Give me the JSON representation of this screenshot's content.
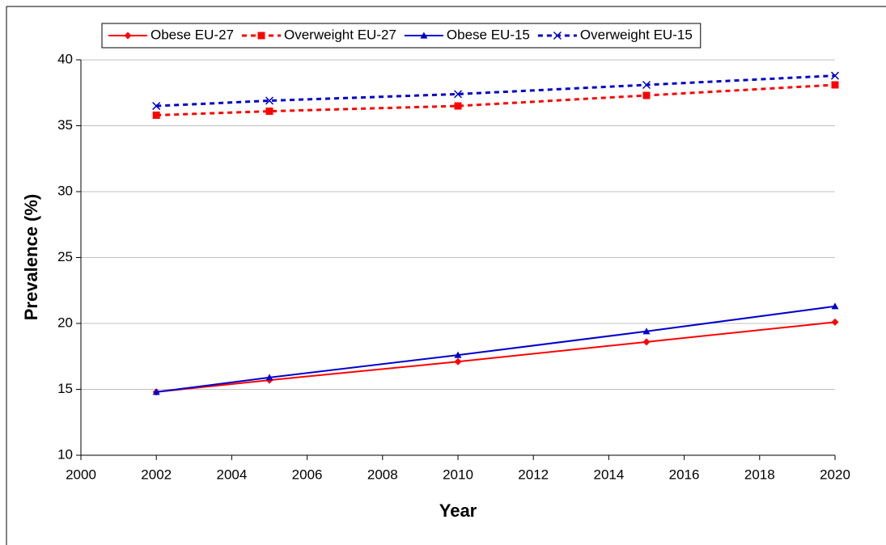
{
  "chart_data": {
    "type": "line",
    "x_label": "Year",
    "y_label": "Prevalence (%)",
    "x": [
      2002,
      2005,
      2010,
      2015,
      2020
    ],
    "series": [
      {
        "name": "Obese EU-27",
        "color": "#ff0000",
        "dash": false,
        "marker": "diamond",
        "values": [
          14.8,
          15.7,
          17.1,
          18.6,
          20.1
        ]
      },
      {
        "name": "Overweight EU-27",
        "color": "#ff0000",
        "dash": true,
        "marker": "square",
        "values": [
          35.8,
          36.1,
          36.5,
          37.3,
          38.1
        ]
      },
      {
        "name": "Obese EU-15",
        "color": "#0000cc",
        "dash": false,
        "marker": "triangle",
        "values": [
          14.8,
          15.9,
          17.6,
          19.4,
          21.3
        ]
      },
      {
        "name": "Overweight EU-15",
        "color": "#0000cc",
        "dash": true,
        "marker": "cross",
        "values": [
          36.5,
          36.9,
          37.4,
          38.1,
          38.8
        ]
      }
    ],
    "xlim": [
      2000,
      2020
    ],
    "xticks": [
      2000,
      2002,
      2004,
      2006,
      2008,
      2010,
      2012,
      2014,
      2016,
      2018,
      2020
    ],
    "ylim": [
      10,
      40
    ],
    "yticks": [
      10,
      15,
      20,
      25,
      30,
      35,
      40
    ],
    "grid": true,
    "legend": "top"
  }
}
